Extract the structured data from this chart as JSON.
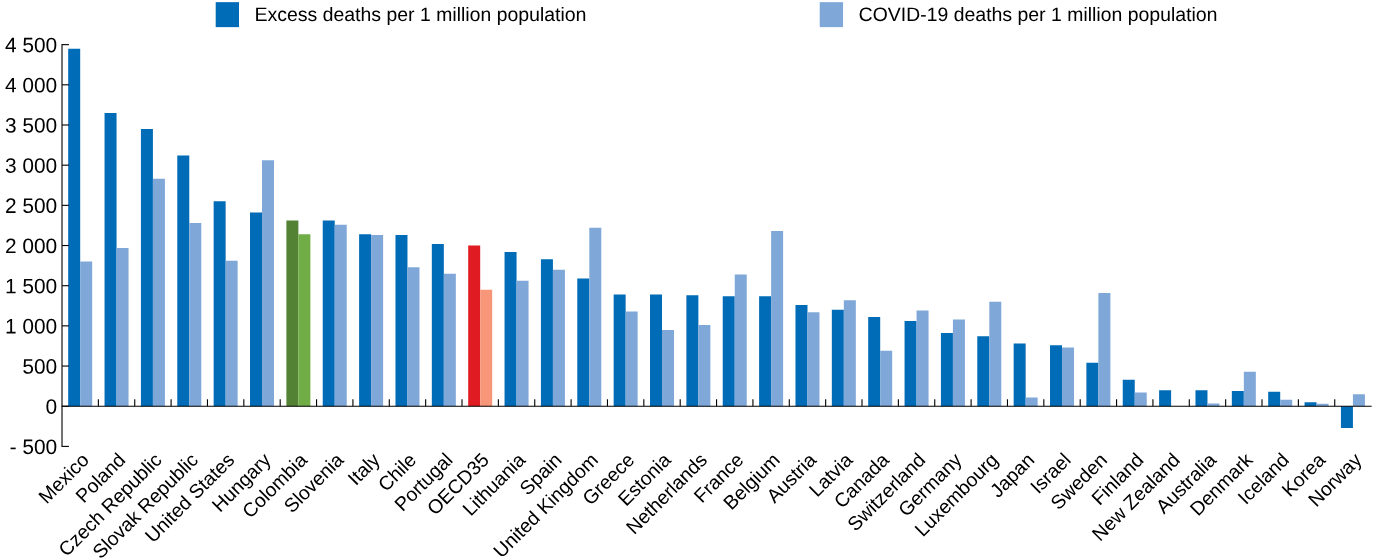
{
  "chart_data": {
    "type": "bar",
    "categories": [
      "Mexico",
      "Poland",
      "Czech Republic",
      "Slovak Republic",
      "United States",
      "Hungary",
      "Colombia",
      "Slovenia",
      "Italy",
      "Chile",
      "Portugal",
      "OECD35",
      "Lithuania",
      "Spain",
      "United Kingdom",
      "Greece",
      "Estonia",
      "Netherlands",
      "France",
      "Belgium",
      "Austria",
      "Latvia",
      "Canada",
      "Switzerland",
      "Germany",
      "Luxembourg",
      "Japan",
      "Israel",
      "Sweden",
      "Finland",
      "New Zealand",
      "Australia",
      "Denmark",
      "Iceland",
      "Korea",
      "Norway"
    ],
    "series": [
      {
        "name": "Excess deaths per 1 million population",
        "color": "#006bb6",
        "colors": [
          "#006bb6",
          "#006bb6",
          "#006bb6",
          "#006bb6",
          "#006bb6",
          "#006bb6",
          "#548235",
          "#006bb6",
          "#006bb6",
          "#006bb6",
          "#006bb6",
          "#e11b22",
          "#006bb6",
          "#006bb6",
          "#006bb6",
          "#006bb6",
          "#006bb6",
          "#006bb6",
          "#006bb6",
          "#006bb6",
          "#006bb6",
          "#006bb6",
          "#006bb6",
          "#006bb6",
          "#006bb6",
          "#006bb6",
          "#006bb6",
          "#006bb6",
          "#006bb6",
          "#006bb6",
          "#006bb6",
          "#006bb6",
          "#006bb6",
          "#006bb6",
          "#006bb6",
          "#006bb6"
        ],
        "values": [
          4450,
          3650,
          3450,
          3120,
          2550,
          2410,
          2310,
          2310,
          2140,
          2130,
          2020,
          2000,
          1920,
          1830,
          1590,
          1390,
          1390,
          1380,
          1370,
          1370,
          1260,
          1200,
          1110,
          1060,
          910,
          870,
          780,
          760,
          540,
          330,
          200,
          200,
          190,
          180,
          50,
          -270
        ]
      },
      {
        "name": "COVID-19 deaths per 1 million population",
        "color": "#7fa8d9",
        "colors": [
          "#7fa8d9",
          "#7fa8d9",
          "#7fa8d9",
          "#7fa8d9",
          "#7fa8d9",
          "#7fa8d9",
          "#70ad47",
          "#7fa8d9",
          "#7fa8d9",
          "#7fa8d9",
          "#7fa8d9",
          "#f79679",
          "#7fa8d9",
          "#7fa8d9",
          "#7fa8d9",
          "#7fa8d9",
          "#7fa8d9",
          "#7fa8d9",
          "#7fa8d9",
          "#7fa8d9",
          "#7fa8d9",
          "#7fa8d9",
          "#7fa8d9",
          "#7fa8d9",
          "#7fa8d9",
          "#7fa8d9",
          "#7fa8d9",
          "#7fa8d9",
          "#7fa8d9",
          "#7fa8d9",
          "#7fa8d9",
          "#7fa8d9",
          "#7fa8d9",
          "#7fa8d9",
          "#7fa8d9",
          "#7fa8d9"
        ],
        "values": [
          1800,
          1970,
          2830,
          2280,
          1810,
          3060,
          2140,
          2260,
          2130,
          1730,
          1650,
          1450,
          1560,
          1700,
          2220,
          1180,
          950,
          1010,
          1640,
          2180,
          1170,
          1320,
          690,
          1190,
          1080,
          1300,
          110,
          730,
          1410,
          170,
          null,
          35,
          430,
          80,
          30,
          150
        ]
      }
    ],
    "ylim": [
      -500,
      4500
    ],
    "yticks": [
      {
        "value": -500,
        "label": "- 500"
      },
      0,
      500,
      {
        "value": 1000,
        "label": "1 000"
      },
      {
        "value": 1500,
        "label": "1 500"
      },
      {
        "value": 2000,
        "label": "2 000"
      },
      {
        "value": 2500,
        "label": "2 500"
      },
      {
        "value": 3000,
        "label": "3 000"
      },
      {
        "value": 3500,
        "label": "3 500"
      },
      {
        "value": 4000,
        "label": "4 000"
      },
      {
        "value": 4500,
        "label": "4 500"
      }
    ],
    "grid": false,
    "legend": "top"
  }
}
